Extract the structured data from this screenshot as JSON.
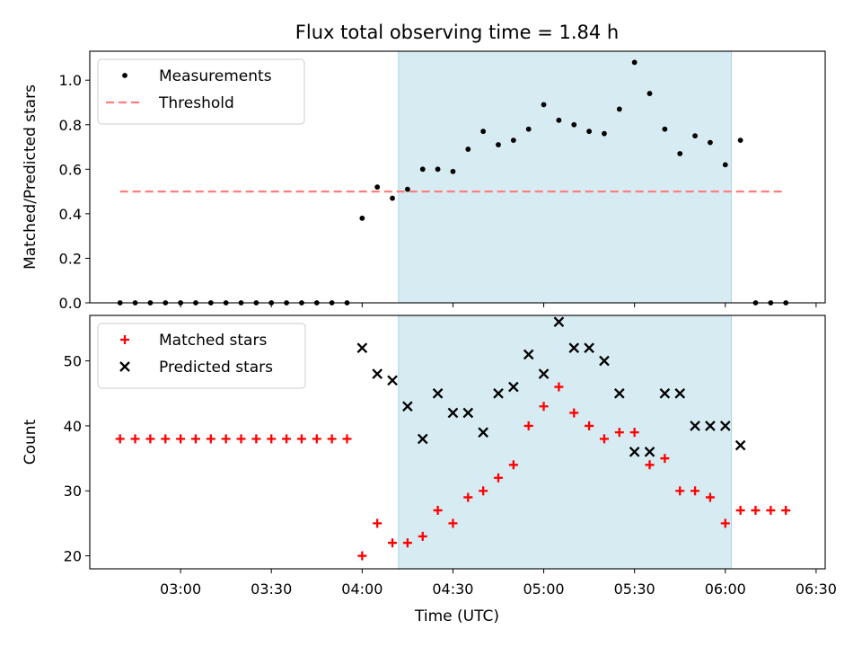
{
  "chart_data": {
    "type": "scatter",
    "title": "Flux total observing time = 1.84 h",
    "xlabel": "Time (UTC)",
    "x_ticks": [
      "03:00",
      "03:30",
      "04:00",
      "04:30",
      "05:00",
      "05:30",
      "06:00",
      "06:30"
    ],
    "x_tick_minutes": [
      180,
      210,
      240,
      270,
      300,
      330,
      360,
      390
    ],
    "xlim_minutes": [
      150,
      393
    ],
    "times": [
      "02:40",
      "02:45",
      "02:50",
      "02:55",
      "03:00",
      "03:05",
      "03:10",
      "03:15",
      "03:20",
      "03:25",
      "03:30",
      "03:35",
      "03:40",
      "03:45",
      "03:50",
      "03:55",
      "04:00",
      "04:05",
      "04:10",
      "04:15",
      "04:20",
      "04:25",
      "04:30",
      "04:35",
      "04:40",
      "04:45",
      "04:50",
      "04:55",
      "05:00",
      "05:05",
      "05:10",
      "05:15",
      "05:20",
      "05:25",
      "05:30",
      "05:35",
      "05:40",
      "05:45",
      "05:50",
      "05:55",
      "06:00",
      "06:05",
      "06:10",
      "06:15",
      "06:20"
    ],
    "highlight_span": [
      "04:12",
      "06:02"
    ],
    "panels": [
      {
        "ylabel": "Matched/Predicted stars",
        "ylim": [
          0,
          1.13
        ],
        "y_ticks": [
          0.0,
          0.2,
          0.4,
          0.6,
          0.8,
          1.0
        ],
        "y_tick_labels": [
          "0.0",
          "0.2",
          "0.4",
          "0.6",
          "0.8",
          "1.0"
        ],
        "legend": "top-left",
        "series": [
          {
            "name": "Measurements",
            "marker": "dot",
            "color": "#000000",
            "values": [
              0,
              0,
              0,
              0,
              0,
              0,
              0,
              0,
              0,
              0,
              0,
              0,
              0,
              0,
              0,
              0,
              0.38,
              0.52,
              0.47,
              0.51,
              0.6,
              0.6,
              0.59,
              0.69,
              0.77,
              0.71,
              0.73,
              0.78,
              0.89,
              0.82,
              0.8,
              0.77,
              0.76,
              0.87,
              1.08,
              0.94,
              0.78,
              0.67,
              0.75,
              0.72,
              0.62,
              0.73,
              0,
              0,
              0
            ]
          }
        ],
        "threshold": {
          "name": "Threshold",
          "value": 0.5,
          "color": "#ff7f7f",
          "x_range": [
            "02:40",
            "06:20"
          ]
        }
      },
      {
        "ylabel": "Count",
        "ylim": [
          18,
          57
        ],
        "y_ticks": [
          20,
          30,
          40,
          50
        ],
        "y_tick_labels": [
          "20",
          "30",
          "40",
          "50"
        ],
        "legend": "top-left",
        "series": [
          {
            "name": "Matched stars",
            "marker": "plus",
            "color": "#ff0000",
            "values": [
              38,
              38,
              38,
              38,
              38,
              38,
              38,
              38,
              38,
              38,
              38,
              38,
              38,
              38,
              38,
              38,
              20,
              25,
              22,
              22,
              23,
              27,
              25,
              29,
              30,
              32,
              34,
              40,
              43,
              46,
              42,
              40,
              38,
              39,
              39,
              34,
              35,
              30,
              30,
              29,
              25,
              27,
              27,
              27,
              27
            ]
          },
          {
            "name": "Predicted stars",
            "marker": "x",
            "color": "#000000",
            "values": [
              null,
              null,
              null,
              null,
              null,
              null,
              null,
              null,
              null,
              null,
              null,
              null,
              null,
              null,
              null,
              null,
              52,
              48,
              47,
              43,
              38,
              45,
              42,
              42,
              39,
              45,
              46,
              51,
              48,
              56,
              52,
              52,
              50,
              45,
              36,
              36,
              45,
              45,
              40,
              40,
              40,
              37,
              null,
              null,
              null
            ]
          }
        ]
      }
    ],
    "highlight_color": "#add8e6"
  }
}
